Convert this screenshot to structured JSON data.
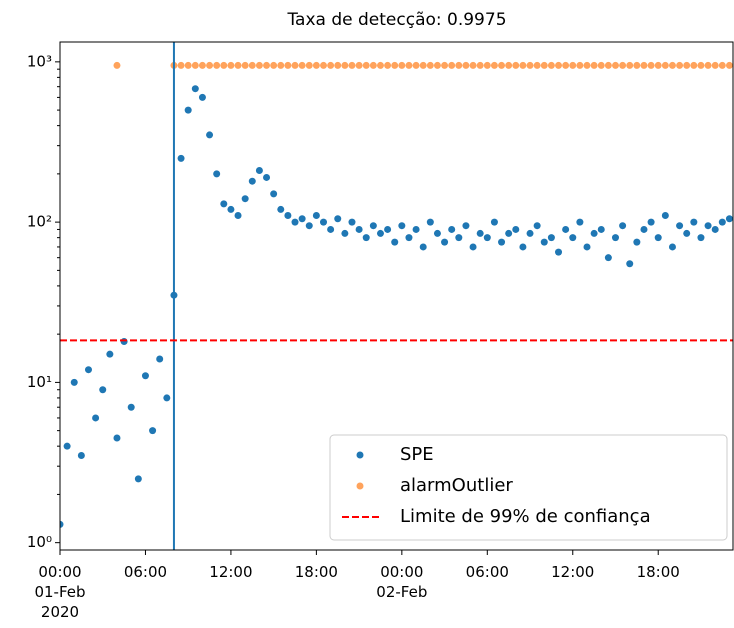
{
  "chart_data": {
    "type": "scatter",
    "title": "Taxa de detecção: 0.9975",
    "log_y": true,
    "xlim": [
      "2020-02-01T00:00",
      "2020-02-02T23:15"
    ],
    "xticks": [
      {
        "value": "2020-02-01T00:00",
        "label": "00:00\n01-Feb\n2020"
      },
      {
        "value": "2020-02-01T06:00",
        "label": "06:00"
      },
      {
        "value": "2020-02-01T12:00",
        "label": "12:00"
      },
      {
        "value": "2020-02-01T18:00",
        "label": "18:00"
      },
      {
        "value": "2020-02-02T00:00",
        "label": "00:00\n02-Feb"
      },
      {
        "value": "2020-02-02T06:00",
        "label": "06:00"
      },
      {
        "value": "2020-02-02T12:00",
        "label": "12:00"
      },
      {
        "value": "2020-02-02T18:00",
        "label": "18:00"
      }
    ],
    "ylim": [
      0.9,
      1330
    ],
    "yticks": [
      {
        "value": 1,
        "label": "10⁰"
      },
      {
        "value": 10,
        "label": "10¹"
      },
      {
        "value": 100,
        "label": "10²"
      },
      {
        "value": 1000,
        "label": "10³"
      }
    ],
    "legend": "lower right",
    "vline": {
      "x": "2020-02-01T08:00",
      "color": "#1f77b4"
    },
    "hlines": [
      {
        "name": "Limite de 99% de confiança",
        "value": 18.3,
        "color": "#ff0000",
        "style": "dashed"
      }
    ],
    "series": [
      {
        "name": "SPE",
        "color": "#1f77b4",
        "x": [
          "2020-02-01T00:00",
          "2020-02-01T00:30",
          "2020-02-01T01:00",
          "2020-02-01T01:30",
          "2020-02-01T02:00",
          "2020-02-01T02:30",
          "2020-02-01T03:00",
          "2020-02-01T03:30",
          "2020-02-01T04:00",
          "2020-02-01T04:30",
          "2020-02-01T05:00",
          "2020-02-01T05:30",
          "2020-02-01T06:00",
          "2020-02-01T06:30",
          "2020-02-01T07:00",
          "2020-02-01T07:30",
          "2020-02-01T08:00",
          "2020-02-01T08:30",
          "2020-02-01T09:00",
          "2020-02-01T09:30",
          "2020-02-01T10:00",
          "2020-02-01T10:30",
          "2020-02-01T11:00",
          "2020-02-01T11:30",
          "2020-02-01T12:00",
          "2020-02-01T12:30",
          "2020-02-01T13:00",
          "2020-02-01T13:30",
          "2020-02-01T14:00",
          "2020-02-01T14:30",
          "2020-02-01T15:00",
          "2020-02-01T15:30",
          "2020-02-01T16:00",
          "2020-02-01T16:30",
          "2020-02-01T17:00",
          "2020-02-01T17:30",
          "2020-02-01T18:00",
          "2020-02-01T18:30",
          "2020-02-01T19:00",
          "2020-02-01T19:30",
          "2020-02-01T20:00",
          "2020-02-01T20:30",
          "2020-02-01T21:00",
          "2020-02-01T21:30",
          "2020-02-01T22:00",
          "2020-02-01T22:30",
          "2020-02-01T23:00",
          "2020-02-01T23:30",
          "2020-02-02T00:00",
          "2020-02-02T00:30",
          "2020-02-02T01:00",
          "2020-02-02T01:30",
          "2020-02-02T02:00",
          "2020-02-02T02:30",
          "2020-02-02T03:00",
          "2020-02-02T03:30",
          "2020-02-02T04:00",
          "2020-02-02T04:30",
          "2020-02-02T05:00",
          "2020-02-02T05:30",
          "2020-02-02T06:00",
          "2020-02-02T06:30",
          "2020-02-02T07:00",
          "2020-02-02T07:30",
          "2020-02-02T08:00",
          "2020-02-02T08:30",
          "2020-02-02T09:00",
          "2020-02-02T09:30",
          "2020-02-02T10:00",
          "2020-02-02T10:30",
          "2020-02-02T11:00",
          "2020-02-02T11:30",
          "2020-02-02T12:00",
          "2020-02-02T12:30",
          "2020-02-02T13:00",
          "2020-02-02T13:30",
          "2020-02-02T14:00",
          "2020-02-02T14:30",
          "2020-02-02T15:00",
          "2020-02-02T15:30",
          "2020-02-02T16:00",
          "2020-02-02T16:30",
          "2020-02-02T17:00",
          "2020-02-02T17:30",
          "2020-02-02T18:00",
          "2020-02-02T18:30",
          "2020-02-02T19:00",
          "2020-02-02T19:30",
          "2020-02-02T20:00",
          "2020-02-02T20:30",
          "2020-02-02T21:00",
          "2020-02-02T21:30",
          "2020-02-02T22:00",
          "2020-02-02T22:30",
          "2020-02-02T23:00"
        ],
        "values": [
          1.3,
          4,
          10,
          3.5,
          12,
          6,
          9,
          15,
          4.5,
          18,
          7,
          2.5,
          11,
          5,
          14,
          8,
          35,
          250,
          500,
          680,
          600,
          350,
          200,
          130,
          120,
          110,
          140,
          180,
          210,
          190,
          150,
          120,
          110,
          100,
          105,
          95,
          110,
          100,
          90,
          105,
          85,
          100,
          90,
          80,
          95,
          85,
          90,
          75,
          95,
          80,
          90,
          70,
          100,
          85,
          75,
          90,
          80,
          95,
          70,
          85,
          80,
          100,
          75,
          85,
          90,
          70,
          85,
          95,
          75,
          80,
          65,
          90,
          80,
          100,
          70,
          85,
          90,
          60,
          80,
          95,
          55,
          75,
          90,
          100,
          80,
          110,
          70,
          95,
          85,
          100,
          80,
          95,
          90,
          100,
          105
        ]
      },
      {
        "name": "alarmOutlier",
        "color": "#ffa35c",
        "x": [
          "2020-02-01T04:00",
          "2020-02-01T08:00",
          "2020-02-01T08:30",
          "2020-02-01T09:00",
          "2020-02-01T09:30",
          "2020-02-01T10:00",
          "2020-02-01T10:30",
          "2020-02-01T11:00",
          "2020-02-01T11:30",
          "2020-02-01T12:00",
          "2020-02-01T12:30",
          "2020-02-01T13:00",
          "2020-02-01T13:30",
          "2020-02-01T14:00",
          "2020-02-01T14:30",
          "2020-02-01T15:00",
          "2020-02-01T15:30",
          "2020-02-01T16:00",
          "2020-02-01T16:30",
          "2020-02-01T17:00",
          "2020-02-01T17:30",
          "2020-02-01T18:00",
          "2020-02-01T18:30",
          "2020-02-01T19:00",
          "2020-02-01T19:30",
          "2020-02-01T20:00",
          "2020-02-01T20:30",
          "2020-02-01T21:00",
          "2020-02-01T21:30",
          "2020-02-01T22:00",
          "2020-02-01T22:30",
          "2020-02-01T23:00",
          "2020-02-01T23:30",
          "2020-02-02T00:00",
          "2020-02-02T00:30",
          "2020-02-02T01:00",
          "2020-02-02T01:30",
          "2020-02-02T02:00",
          "2020-02-02T02:30",
          "2020-02-02T03:00",
          "2020-02-02T03:30",
          "2020-02-02T04:00",
          "2020-02-02T04:30",
          "2020-02-02T05:00",
          "2020-02-02T05:30",
          "2020-02-02T06:00",
          "2020-02-02T06:30",
          "2020-02-02T07:00",
          "2020-02-02T07:30",
          "2020-02-02T08:00",
          "2020-02-02T08:30",
          "2020-02-02T09:00",
          "2020-02-02T09:30",
          "2020-02-02T10:00",
          "2020-02-02T10:30",
          "2020-02-02T11:00",
          "2020-02-02T11:30",
          "2020-02-02T12:00",
          "2020-02-02T12:30",
          "2020-02-02T13:00",
          "2020-02-02T13:30",
          "2020-02-02T14:00",
          "2020-02-02T14:30",
          "2020-02-02T15:00",
          "2020-02-02T15:30",
          "2020-02-02T16:00",
          "2020-02-02T16:30",
          "2020-02-02T17:00",
          "2020-02-02T17:30",
          "2020-02-02T18:00",
          "2020-02-02T18:30",
          "2020-02-02T19:00",
          "2020-02-02T19:30",
          "2020-02-02T20:00",
          "2020-02-02T20:30",
          "2020-02-02T21:00",
          "2020-02-02T21:30",
          "2020-02-02T22:00",
          "2020-02-02T22:30",
          "2020-02-02T23:00"
        ],
        "values": [
          950,
          950,
          950,
          950,
          950,
          950,
          950,
          950,
          950,
          950,
          950,
          950,
          950,
          950,
          950,
          950,
          950,
          950,
          950,
          950,
          950,
          950,
          950,
          950,
          950,
          950,
          950,
          950,
          950,
          950,
          950,
          950,
          950,
          950,
          950,
          950,
          950,
          950,
          950,
          950,
          950,
          950,
          950,
          950,
          950,
          950,
          950,
          950,
          950,
          950,
          950,
          950,
          950,
          950,
          950,
          950,
          950,
          950,
          950,
          950,
          950,
          950,
          950,
          950,
          950,
          950,
          950,
          950,
          950,
          950,
          950,
          950,
          950,
          950,
          950,
          950,
          950,
          950,
          950,
          950
        ]
      }
    ]
  }
}
